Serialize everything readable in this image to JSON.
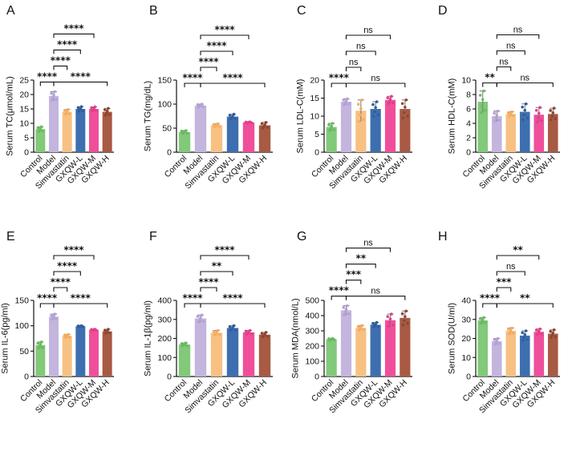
{
  "figure": {
    "categories": [
      "Control",
      "Model",
      "Simvastatin",
      "GXQW-L",
      "GXQW-M",
      "GXQW-H"
    ],
    "colors": [
      "#82c97a",
      "#c3b5dd",
      "#f7c184",
      "#3d6fb0",
      "#ef4f9a",
      "#a85a43"
    ],
    "dot_colors": [
      "#6aba62",
      "#b4a1d8",
      "#f4ad61",
      "#2f5e9f",
      "#e23e8a",
      "#8e4532"
    ]
  },
  "chart_data": [
    {
      "panel": "A",
      "type": "bar",
      "ylabel": "Serum TC(μmol/mL)",
      "ylim": [
        0,
        25
      ],
      "yticks": [
        0,
        5,
        10,
        15,
        20,
        25
      ],
      "values": [
        8,
        19.5,
        14,
        15,
        15,
        14
      ],
      "errors": [
        0.8,
        1.5,
        0.8,
        0.8,
        0.7,
        1.2
      ],
      "comparisons": [
        {
          "from": 0,
          "to": 1,
          "label": "****"
        },
        {
          "from": 1,
          "to": 2,
          "label": "****"
        },
        {
          "from": 1,
          "to": 3,
          "label": "****"
        },
        {
          "from": 1,
          "to": 4,
          "label": "****"
        },
        {
          "from": 1,
          "to": 5,
          "label": "****"
        }
      ]
    },
    {
      "panel": "B",
      "type": "bar",
      "ylabel": "Serum TG(mg/dL)",
      "ylim": [
        0,
        150
      ],
      "yticks": [
        0,
        50,
        100,
        150
      ],
      "values": [
        42,
        97,
        56,
        74,
        62,
        56
      ],
      "errors": [
        3,
        3,
        3,
        5,
        1,
        6
      ],
      "comparisons": [
        {
          "from": 0,
          "to": 1,
          "label": "****"
        },
        {
          "from": 1,
          "to": 2,
          "label": "****"
        },
        {
          "from": 1,
          "to": 3,
          "label": "****"
        },
        {
          "from": 1,
          "to": 4,
          "label": "****"
        },
        {
          "from": 1,
          "to": 5,
          "label": "****"
        }
      ]
    },
    {
      "panel": "C",
      "type": "bar",
      "ylabel": "Serum LDL-C(mM)",
      "ylim": [
        0,
        20
      ],
      "yticks": [
        0,
        5,
        10,
        15,
        20
      ],
      "values": [
        7,
        14,
        11.5,
        12,
        14.5,
        12
      ],
      "errors": [
        1,
        0.8,
        3,
        2,
        1,
        2.5
      ],
      "comparisons": [
        {
          "from": 0,
          "to": 1,
          "label": "****"
        },
        {
          "from": 1,
          "to": 2,
          "label": "ns"
        },
        {
          "from": 1,
          "to": 3,
          "label": "ns"
        },
        {
          "from": 1,
          "to": 4,
          "label": "ns"
        },
        {
          "from": 1,
          "to": 5,
          "label": "ns"
        }
      ]
    },
    {
      "panel": "D",
      "type": "bar",
      "ylabel": "Serum HDL-C(mM)",
      "ylim": [
        0,
        10
      ],
      "yticks": [
        0,
        2,
        4,
        6,
        8,
        10
      ],
      "values": [
        7,
        5,
        5.3,
        5.6,
        5.2,
        5.3
      ],
      "errors": [
        1.5,
        0.7,
        0.3,
        1.1,
        1,
        0.8
      ],
      "comparisons": [
        {
          "from": 0,
          "to": 1,
          "label": "**"
        },
        {
          "from": 1,
          "to": 2,
          "label": "ns"
        },
        {
          "from": 1,
          "to": 3,
          "label": "ns"
        },
        {
          "from": 1,
          "to": 4,
          "label": "ns"
        },
        {
          "from": 1,
          "to": 5,
          "label": "ns"
        }
      ]
    },
    {
      "panel": "E",
      "type": "bar",
      "ylabel": "Serum IL-6(pg/ml)",
      "ylim": [
        0,
        150
      ],
      "yticks": [
        0,
        50,
        100,
        150
      ],
      "values": [
        62,
        118,
        80,
        99,
        92,
        89
      ],
      "errors": [
        6,
        5,
        3,
        1,
        1,
        4
      ],
      "comparisons": [
        {
          "from": 0,
          "to": 1,
          "label": "****"
        },
        {
          "from": 1,
          "to": 2,
          "label": "****"
        },
        {
          "from": 1,
          "to": 3,
          "label": "****"
        },
        {
          "from": 1,
          "to": 4,
          "label": "****"
        },
        {
          "from": 1,
          "to": 5,
          "label": "****"
        }
      ]
    },
    {
      "panel": "F",
      "type": "bar",
      "ylabel": "Serum IL-1β(pg/ml)",
      "ylim": [
        0,
        400
      ],
      "yticks": [
        0,
        100,
        200,
        300,
        400
      ],
      "values": [
        168,
        305,
        230,
        255,
        232,
        220
      ],
      "errors": [
        8,
        18,
        12,
        12,
        10,
        12
      ],
      "comparisons": [
        {
          "from": 0,
          "to": 1,
          "label": "****"
        },
        {
          "from": 1,
          "to": 2,
          "label": "****"
        },
        {
          "from": 1,
          "to": 3,
          "label": "**"
        },
        {
          "from": 1,
          "to": 4,
          "label": "****"
        },
        {
          "from": 1,
          "to": 5,
          "label": "****"
        }
      ]
    },
    {
      "panel": "G",
      "type": "bar",
      "ylabel": "Serum MDA(nmol/L)",
      "ylim": [
        0,
        500
      ],
      "yticks": [
        0,
        100,
        200,
        300,
        400,
        500
      ],
      "values": [
        245,
        435,
        320,
        340,
        370,
        385
      ],
      "errors": [
        5,
        30,
        15,
        15,
        40,
        45
      ],
      "comparisons": [
        {
          "from": 0,
          "to": 1,
          "label": "****"
        },
        {
          "from": 1,
          "to": 2,
          "label": "***"
        },
        {
          "from": 1,
          "to": 3,
          "label": "**"
        },
        {
          "from": 1,
          "to": 4,
          "label": "ns"
        },
        {
          "from": 1,
          "to": 5,
          "label": "ns"
        }
      ]
    },
    {
      "panel": "H",
      "type": "bar",
      "ylabel": "Serum SOD(U/ml)",
      "ylim": [
        0,
        40
      ],
      "yticks": [
        0,
        10,
        20,
        30,
        40
      ],
      "values": [
        29.5,
        18.5,
        24,
        21.5,
        23.5,
        22.5
      ],
      "errors": [
        1.5,
        1.5,
        1.5,
        2.5,
        1.5,
        2
      ],
      "comparisons": [
        {
          "from": 0,
          "to": 1,
          "label": "****"
        },
        {
          "from": 1,
          "to": 2,
          "label": "***"
        },
        {
          "from": 1,
          "to": 3,
          "label": "ns"
        },
        {
          "from": 1,
          "to": 4,
          "label": "**"
        },
        {
          "from": 1,
          "to": 5,
          "label": "**"
        }
      ]
    }
  ]
}
